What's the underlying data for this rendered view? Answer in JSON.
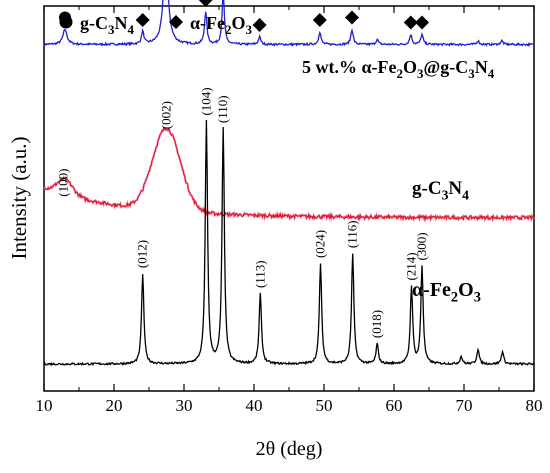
{
  "chart_data": {
    "type": "line",
    "xlabel": "2θ (deg)",
    "ylabel": "Intensity (a.u.)",
    "xlim": [
      10,
      80
    ],
    "xticks": [
      10,
      20,
      30,
      40,
      50,
      60,
      70,
      80
    ],
    "grid": false,
    "legend": {
      "placement": "top-left",
      "items": [
        {
          "marker": "circle",
          "label": "g-C3N4"
        },
        {
          "marker": "diamond",
          "label": "α-Fe2O3"
        }
      ]
    },
    "series": [
      {
        "name": "5 wt.% α-Fe2O3@g-C3N4",
        "color": "#1f1fd0",
        "baseline": 0.1,
        "noise": 0.8,
        "peaks": [
          {
            "x": 13.0,
            "h": 6,
            "w": 0.35
          },
          {
            "x": 24.1,
            "h": 5,
            "w": 0.2
          },
          {
            "x": 27.4,
            "h": 36,
            "w": 0.4
          },
          {
            "x": 33.1,
            "h": 13,
            "w": 0.2
          },
          {
            "x": 35.6,
            "h": 20,
            "w": 0.2
          },
          {
            "x": 40.8,
            "h": 3,
            "w": 0.2
          },
          {
            "x": 49.4,
            "h": 5,
            "w": 0.2
          },
          {
            "x": 54.0,
            "h": 6,
            "w": 0.2
          },
          {
            "x": 57.6,
            "h": 2,
            "w": 0.2
          },
          {
            "x": 62.4,
            "h": 4,
            "w": 0.2
          },
          {
            "x": 64.0,
            "h": 4,
            "w": 0.2
          },
          {
            "x": 72.0,
            "h": 1.5,
            "w": 0.2
          },
          {
            "x": 75.4,
            "h": 1.5,
            "w": 0.2
          }
        ],
        "markers": [
          {
            "x": 13.0,
            "type": "circle"
          },
          {
            "x": 24.1,
            "type": "diamond"
          },
          {
            "x": 27.4,
            "type": "circle"
          },
          {
            "x": 33.1,
            "type": "diamond"
          },
          {
            "x": 35.6,
            "type": "diamond"
          },
          {
            "x": 40.8,
            "type": "diamond"
          },
          {
            "x": 49.4,
            "type": "diamond"
          },
          {
            "x": 54.0,
            "type": "diamond"
          },
          {
            "x": 62.4,
            "type": "diamond"
          },
          {
            "x": 64.0,
            "type": "diamond"
          }
        ]
      },
      {
        "name": "g-C3N4",
        "color": "#e02020",
        "baseline": 0.55,
        "noise": 1.4,
        "decay": {
          "x0": 10,
          "amp": 12,
          "tau": 12
        },
        "peaks": [
          {
            "x": 13.0,
            "h": 6,
            "w": 1.1
          },
          {
            "x": 27.5,
            "h": 33,
            "w": 2.0
          }
        ],
        "peak_labels": [
          {
            "x": 12.8,
            "text": "(100)"
          },
          {
            "x": 27.5,
            "text": "(002)"
          }
        ]
      },
      {
        "name": "α-Fe2O3",
        "color": "#000000",
        "baseline": 0.93,
        "noise": 0.8,
        "peaks": [
          {
            "x": 24.1,
            "h": 36,
            "w": 0.2
          },
          {
            "x": 33.2,
            "h": 97,
            "w": 0.2
          },
          {
            "x": 35.6,
            "h": 94,
            "w": 0.2
          },
          {
            "x": 40.9,
            "h": 28,
            "w": 0.2
          },
          {
            "x": 49.5,
            "h": 40,
            "w": 0.2
          },
          {
            "x": 54.1,
            "h": 44,
            "w": 0.2
          },
          {
            "x": 57.6,
            "h": 8,
            "w": 0.2
          },
          {
            "x": 62.5,
            "h": 31,
            "w": 0.2
          },
          {
            "x": 64.0,
            "h": 39,
            "w": 0.2
          },
          {
            "x": 69.6,
            "h": 3,
            "w": 0.2
          },
          {
            "x": 72.0,
            "h": 6,
            "w": 0.2
          },
          {
            "x": 75.5,
            "h": 5,
            "w": 0.2
          }
        ],
        "peak_labels": [
          {
            "x": 24.1,
            "text": "(012)"
          },
          {
            "x": 33.2,
            "text": "(104)"
          },
          {
            "x": 35.6,
            "text": "(110)"
          },
          {
            "x": 40.9,
            "text": "(113)"
          },
          {
            "x": 49.5,
            "text": "(024)"
          },
          {
            "x": 54.1,
            "text": "(116)"
          },
          {
            "x": 57.6,
            "text": "(018)"
          },
          {
            "x": 62.5,
            "text": "(214)"
          },
          {
            "x": 64.0,
            "text": "(300)"
          }
        ]
      }
    ]
  }
}
